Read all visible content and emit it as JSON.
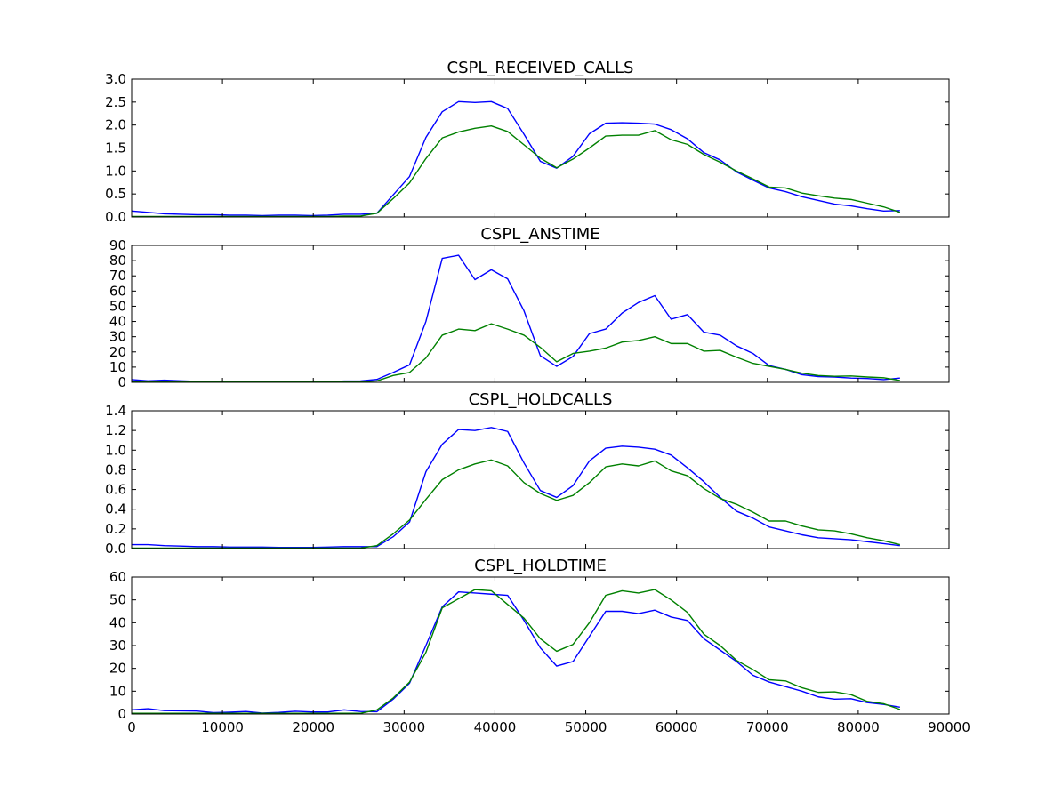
{
  "figure": {
    "colors": {
      "series_blue": "#0000ff",
      "series_green": "#008000",
      "axes": "#000000",
      "background": "#ffffff"
    }
  },
  "chart_data": [
    {
      "type": "line",
      "title": "CSPL_RECEIVED_CALLS",
      "xlabel": "",
      "ylabel": "",
      "xlim": [
        0,
        90000
      ],
      "ylim": [
        0,
        3.0
      ],
      "yticks": [
        "0.0",
        "0.5",
        "1.0",
        "1.5",
        "2.0",
        "2.5",
        "3.0"
      ],
      "ytick_values": [
        0,
        0.5,
        1.0,
        1.5,
        2.0,
        2.5,
        3.0
      ],
      "xticks": [],
      "x": [
        0,
        1800,
        3600,
        5400,
        7200,
        9000,
        10800,
        12600,
        14400,
        16200,
        18000,
        19800,
        21600,
        23400,
        25200,
        27000,
        28800,
        30600,
        32400,
        34200,
        36000,
        37800,
        39600,
        41400,
        43200,
        45000,
        46800,
        48600,
        50400,
        52200,
        54000,
        55800,
        57600,
        59400,
        61200,
        63000,
        64800,
        66600,
        68400,
        70200,
        72000,
        73800,
        75600,
        77400,
        79200,
        81000,
        82800,
        84600
      ],
      "grid": false,
      "series": [
        {
          "color": "#0000ff",
          "values": [
            0.13,
            0.1,
            0.07,
            0.06,
            0.05,
            0.05,
            0.04,
            0.04,
            0.03,
            0.04,
            0.04,
            0.03,
            0.04,
            0.06,
            0.06,
            0.08,
            0.48,
            0.88,
            1.73,
            2.29,
            2.51,
            2.49,
            2.51,
            2.36,
            1.8,
            1.21,
            1.06,
            1.32,
            1.81,
            2.04,
            2.05,
            2.04,
            2.02,
            1.9,
            1.7,
            1.4,
            1.24,
            0.98,
            0.8,
            0.63,
            0.55,
            0.44,
            0.36,
            0.28,
            0.24,
            0.18,
            0.13,
            0.14
          ]
        },
        {
          "color": "#008000",
          "values": [
            0.01,
            0.01,
            0.01,
            0.01,
            0.01,
            0.01,
            0.01,
            0.01,
            0.01,
            0.01,
            0.01,
            0.01,
            0.01,
            0.02,
            0.02,
            0.08,
            0.4,
            0.74,
            1.27,
            1.72,
            1.85,
            1.93,
            1.98,
            1.86,
            1.57,
            1.28,
            1.07,
            1.26,
            1.5,
            1.76,
            1.78,
            1.78,
            1.88,
            1.68,
            1.58,
            1.36,
            1.19,
            1.0,
            0.83,
            0.65,
            0.63,
            0.52,
            0.46,
            0.41,
            0.38,
            0.3,
            0.22,
            0.1
          ]
        }
      ]
    },
    {
      "type": "line",
      "title": "CSPL_ANSTIME",
      "xlabel": "",
      "ylabel": "",
      "xlim": [
        0,
        90000
      ],
      "ylim": [
        0,
        90
      ],
      "yticks": [
        "0",
        "10",
        "20",
        "30",
        "40",
        "50",
        "60",
        "70",
        "80",
        "90"
      ],
      "ytick_values": [
        0,
        10,
        20,
        30,
        40,
        50,
        60,
        70,
        80,
        90
      ],
      "xticks": [],
      "x": [
        0,
        1800,
        3600,
        5400,
        7200,
        9000,
        10800,
        12600,
        14400,
        16200,
        18000,
        19800,
        21600,
        23400,
        25200,
        27000,
        28800,
        30600,
        32400,
        34200,
        36000,
        37800,
        39600,
        41400,
        43200,
        45000,
        46800,
        48600,
        50400,
        52200,
        54000,
        55800,
        57600,
        59400,
        61200,
        63000,
        64800,
        66600,
        68400,
        70200,
        72000,
        73800,
        75600,
        77400,
        79200,
        81000,
        82800,
        84600
      ],
      "grid": false,
      "series": [
        {
          "color": "#0000ff",
          "values": [
            1.8,
            1.0,
            1.4,
            1.0,
            0.6,
            0.6,
            0.5,
            0.4,
            0.5,
            0.4,
            0.4,
            0.4,
            0.5,
            0.8,
            0.9,
            1.9,
            6.5,
            11.5,
            40.0,
            81.5,
            83.5,
            67.5,
            74.0,
            68.0,
            47.0,
            17.5,
            10.5,
            17.0,
            32.0,
            35.0,
            45.5,
            52.5,
            57.0,
            41.5,
            44.5,
            33.0,
            31.0,
            24.0,
            19.0,
            11.0,
            8.5,
            5.0,
            3.8,
            3.5,
            2.8,
            2.5,
            1.8,
            2.8
          ]
        },
        {
          "color": "#008000",
          "values": [
            0.2,
            0.2,
            0.2,
            0.2,
            0.2,
            0.2,
            0.2,
            0.2,
            0.2,
            0.2,
            0.2,
            0.2,
            0.3,
            0.4,
            0.4,
            0.9,
            4.5,
            6.5,
            16.0,
            31.0,
            35.0,
            34.0,
            38.5,
            35.0,
            31.0,
            23.0,
            13.5,
            19.0,
            20.5,
            22.5,
            26.5,
            27.5,
            30.0,
            25.5,
            25.5,
            20.5,
            21.0,
            16.5,
            12.5,
            10.5,
            8.5,
            6.0,
            4.5,
            4.0,
            4.2,
            3.5,
            3.0,
            1.2
          ]
        }
      ]
    },
    {
      "type": "line",
      "title": "CSPL_HOLDCALLS",
      "xlabel": "",
      "ylabel": "",
      "xlim": [
        0,
        90000
      ],
      "ylim": [
        0,
        1.4
      ],
      "yticks": [
        "0.0",
        "0.2",
        "0.4",
        "0.6",
        "0.8",
        "1.0",
        "1.2",
        "1.4"
      ],
      "ytick_values": [
        0,
        0.2,
        0.4,
        0.6,
        0.8,
        1.0,
        1.2,
        1.4
      ],
      "xticks": [],
      "x": [
        0,
        1800,
        3600,
        5400,
        7200,
        9000,
        10800,
        12600,
        14400,
        16200,
        18000,
        19800,
        21600,
        23400,
        25200,
        27000,
        28800,
        30600,
        32400,
        34200,
        36000,
        37800,
        39600,
        41400,
        43200,
        45000,
        46800,
        48600,
        50400,
        52200,
        54000,
        55800,
        57600,
        59400,
        61200,
        63000,
        64800,
        66600,
        68400,
        70200,
        72000,
        73800,
        75600,
        77400,
        79200,
        81000,
        82800,
        84600
      ],
      "grid": false,
      "series": [
        {
          "color": "#0000ff",
          "values": [
            0.04,
            0.04,
            0.03,
            0.025,
            0.02,
            0.02,
            0.015,
            0.015,
            0.015,
            0.012,
            0.012,
            0.012,
            0.015,
            0.02,
            0.02,
            0.02,
            0.12,
            0.27,
            0.78,
            1.06,
            1.21,
            1.2,
            1.23,
            1.19,
            0.87,
            0.59,
            0.52,
            0.64,
            0.89,
            1.02,
            1.04,
            1.03,
            1.01,
            0.95,
            0.82,
            0.68,
            0.52,
            0.38,
            0.31,
            0.22,
            0.18,
            0.14,
            0.11,
            0.1,
            0.09,
            0.07,
            0.05,
            0.03
          ]
        },
        {
          "color": "#008000",
          "values": [
            0.005,
            0.005,
            0.005,
            0.005,
            0.005,
            0.005,
            0.005,
            0.005,
            0.005,
            0.005,
            0.005,
            0.005,
            0.005,
            0.005,
            0.005,
            0.03,
            0.15,
            0.29,
            0.5,
            0.7,
            0.8,
            0.86,
            0.9,
            0.84,
            0.67,
            0.56,
            0.49,
            0.54,
            0.67,
            0.83,
            0.86,
            0.84,
            0.89,
            0.79,
            0.74,
            0.61,
            0.51,
            0.45,
            0.37,
            0.28,
            0.28,
            0.23,
            0.19,
            0.18,
            0.15,
            0.11,
            0.08,
            0.04
          ]
        }
      ]
    },
    {
      "type": "line",
      "title": "CSPL_HOLDTIME",
      "xlabel": "",
      "ylabel": "",
      "xlim": [
        0,
        90000
      ],
      "ylim": [
        0,
        60
      ],
      "yticks": [
        "0",
        "10",
        "20",
        "30",
        "40",
        "50",
        "60"
      ],
      "ytick_values": [
        0,
        10,
        20,
        30,
        40,
        50,
        60
      ],
      "xticks": [
        "0",
        "10000",
        "20000",
        "30000",
        "40000",
        "50000",
        "60000",
        "70000",
        "80000",
        "90000"
      ],
      "xtick_values": [
        0,
        10000,
        20000,
        30000,
        40000,
        50000,
        60000,
        70000,
        80000,
        90000
      ],
      "x": [
        0,
        1800,
        3600,
        5400,
        7200,
        9000,
        10800,
        12600,
        14400,
        16200,
        18000,
        19800,
        21600,
        23400,
        25200,
        27000,
        28800,
        30600,
        32400,
        34200,
        36000,
        37800,
        39600,
        41400,
        43200,
        45000,
        46800,
        48600,
        50400,
        52200,
        54000,
        55800,
        57600,
        59400,
        61200,
        63000,
        64800,
        66600,
        68400,
        70200,
        72000,
        73800,
        75600,
        77400,
        79200,
        81000,
        82800,
        84600
      ],
      "grid": false,
      "series": [
        {
          "color": "#0000ff",
          "values": [
            1.8,
            2.3,
            1.5,
            1.4,
            1.3,
            0.6,
            0.8,
            1.1,
            0.4,
            0.7,
            1.2,
            0.9,
            0.9,
            1.8,
            1.1,
            1.0,
            6.5,
            13.5,
            30.0,
            47.0,
            53.5,
            53.0,
            52.5,
            52.0,
            41.0,
            29.0,
            21.0,
            23.0,
            34.0,
            45.0,
            45.0,
            44.0,
            45.5,
            42.5,
            41.0,
            33.0,
            28.0,
            23.0,
            17.0,
            14.0,
            12.0,
            10.0,
            7.5,
            6.5,
            6.7,
            5.0,
            4.2,
            3.0
          ]
        },
        {
          "color": "#008000",
          "values": [
            0.3,
            0.3,
            0.3,
            0.3,
            0.3,
            0.3,
            0.3,
            0.3,
            0.3,
            0.3,
            0.3,
            0.3,
            0.3,
            0.3,
            0.3,
            1.8,
            7.0,
            14.0,
            27.0,
            46.5,
            50.5,
            54.5,
            54.0,
            48.0,
            42.0,
            33.0,
            27.5,
            30.5,
            40.0,
            52.0,
            54.0,
            53.0,
            54.5,
            50.0,
            44.5,
            35.0,
            30.0,
            23.5,
            19.5,
            15.0,
            14.5,
            11.5,
            9.5,
            9.7,
            8.5,
            5.5,
            4.5,
            2.0
          ]
        }
      ]
    }
  ]
}
